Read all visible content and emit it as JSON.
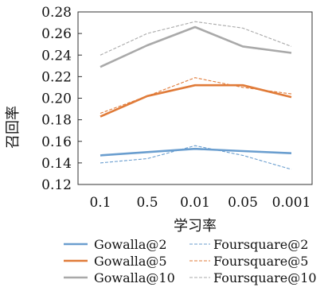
{
  "chart_data": {
    "type": "line",
    "categories": [
      "0.1",
      "0.5",
      "0.01",
      "0.05",
      "0.001"
    ],
    "xlabel": "学习率",
    "ylabel": "召回率",
    "ylim": [
      0.12,
      0.28
    ],
    "yticks": [
      "0.12",
      "0.14",
      "0.16",
      "0.18",
      "0.20",
      "0.22",
      "0.24",
      "0.26",
      "0.28"
    ],
    "grid": false,
    "legend_position": "bottom",
    "series": [
      {
        "name": "Gowalla@2",
        "values": [
          0.147,
          0.15,
          0.153,
          0.151,
          0.149
        ],
        "color": "#6a9ecf",
        "style": "solid"
      },
      {
        "name": "Gowalla@5",
        "values": [
          0.183,
          0.202,
          0.212,
          0.212,
          0.201
        ],
        "color": "#e07b39",
        "style": "solid"
      },
      {
        "name": "Gowalla@10",
        "values": [
          0.229,
          0.249,
          0.266,
          0.248,
          0.242
        ],
        "color": "#a9a9a9",
        "style": "solid"
      },
      {
        "name": "Foursquare@2",
        "values": [
          0.14,
          0.144,
          0.156,
          0.147,
          0.134
        ],
        "color": "#6a9ecf",
        "style": "dashed"
      },
      {
        "name": "Foursquare@5",
        "values": [
          0.186,
          0.202,
          0.219,
          0.21,
          0.204
        ],
        "color": "#e07b39",
        "style": "dashed"
      },
      {
        "name": "Foursquare@10",
        "values": [
          0.24,
          0.26,
          0.271,
          0.265,
          0.248
        ],
        "color": "#a9a9a9",
        "style": "dashed"
      }
    ]
  }
}
